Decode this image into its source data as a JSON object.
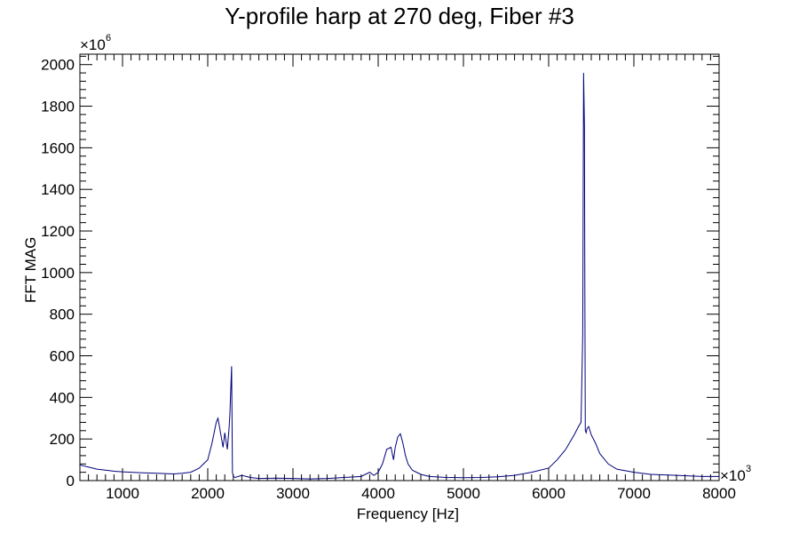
{
  "chart_data": {
    "type": "line",
    "title": "Y-profile harp at 270 deg, Fiber #3",
    "xlabel": "Frequency [Hz]",
    "ylabel": "FFT MAG",
    "x_multiplier_base": "×10",
    "x_multiplier_exp": "3",
    "y_multiplier_base": "×10",
    "y_multiplier_exp": "6",
    "xlim": [
      500,
      8000
    ],
    "ylim": [
      0,
      2050
    ],
    "x_ticks": [
      1000,
      2000,
      3000,
      4000,
      5000,
      6000,
      7000,
      8000
    ],
    "y_ticks": [
      0,
      200,
      400,
      600,
      800,
      1000,
      1200,
      1400,
      1600,
      1800,
      2000
    ],
    "line_color": "#00007a",
    "grid": false,
    "series": [
      {
        "x": [
          500,
          600,
          700,
          800,
          900,
          1000,
          1200,
          1400,
          1600,
          1700,
          1800,
          1850,
          1900,
          1950,
          2000,
          2050,
          2100,
          2120,
          2150,
          2180,
          2200,
          2230,
          2250,
          2260,
          2280,
          2290,
          2300,
          2320,
          2400,
          2500,
          2600,
          2800,
          3000,
          3200,
          3400,
          3600,
          3800,
          3900,
          3950,
          4000,
          4050,
          4100,
          4150,
          4180,
          4200,
          4230,
          4260,
          4290,
          4320,
          4350,
          4400,
          4450,
          4500,
          4600,
          4800,
          5000,
          5200,
          5400,
          5600,
          5800,
          6000,
          6100,
          6200,
          6300,
          6350,
          6380,
          6400,
          6410,
          6420,
          6425,
          6430,
          6440,
          6450,
          6470,
          6500,
          6550,
          6600,
          6700,
          6800,
          7000,
          7200,
          7500,
          7800,
          8000
        ],
        "y": [
          75,
          65,
          55,
          50,
          45,
          42,
          38,
          35,
          32,
          35,
          40,
          50,
          60,
          80,
          100,
          180,
          280,
          300,
          230,
          160,
          230,
          150,
          250,
          320,
          550,
          40,
          20,
          15,
          25,
          15,
          10,
          12,
          10,
          8,
          10,
          15,
          20,
          40,
          25,
          40,
          80,
          150,
          160,
          100,
          160,
          210,
          225,
          180,
          120,
          80,
          50,
          40,
          30,
          20,
          15,
          14,
          15,
          18,
          25,
          40,
          60,
          100,
          150,
          220,
          260,
          280,
          700,
          1960,
          1700,
          900,
          240,
          230,
          250,
          260,
          220,
          180,
          130,
          80,
          55,
          40,
          30,
          25,
          20,
          20
        ]
      }
    ]
  }
}
